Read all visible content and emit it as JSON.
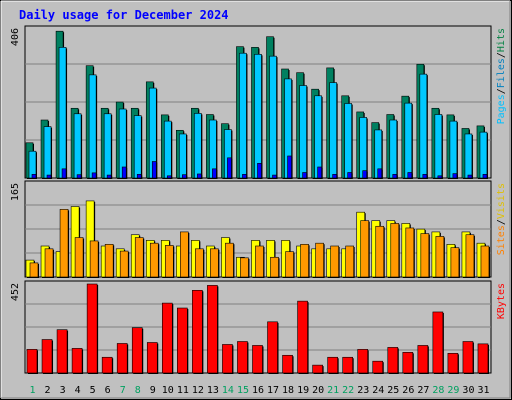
{
  "chart_data": {
    "type": "bar",
    "title": "Daily usage for December 2024",
    "categories": [
      "1",
      "2",
      "3",
      "4",
      "5",
      "6",
      "7",
      "8",
      "9",
      "10",
      "11",
      "12",
      "13",
      "14",
      "15",
      "16",
      "17",
      "18",
      "19",
      "20",
      "21",
      "22",
      "23",
      "24",
      "25",
      "26",
      "27",
      "28",
      "29",
      "30",
      "31"
    ],
    "weekend_days": [
      "1",
      "7",
      "8",
      "14",
      "15",
      "21",
      "22",
      "28",
      "29"
    ],
    "panels": [
      {
        "name": "hits-files-pages",
        "ytick": "406",
        "ymax": 406,
        "legend": [
          {
            "text": "Pages",
            "color": "#00c0ff"
          },
          {
            "text": "/",
            "color": "#000000"
          },
          {
            "text": "Files",
            "color": "#0080c0"
          },
          {
            "text": "/",
            "color": "#000000"
          },
          {
            "text": "Hits",
            "color": "#008040"
          }
        ],
        "series": [
          {
            "name": "Hits",
            "color": "#008060",
            "values": [
              96,
              158,
              400,
              190,
              306,
              190,
              207,
              190,
              262,
              172,
              130,
              190,
              173,
              148,
              358,
              356,
              385,
              297,
              287,
              242,
              300,
              224,
              180,
              151,
              173,
              223,
              310,
              190,
              172,
              135,
              142
            ]
          },
          {
            "name": "Files",
            "color": "#00c8ff",
            "values": [
              73,
              140,
              356,
              175,
              281,
              175,
              188,
              170,
              245,
              155,
              120,
              176,
              158,
              132,
              340,
              337,
              332,
              270,
              252,
              224,
              260,
              203,
              165,
              131,
              158,
              204,
              283,
              173,
              155,
              120,
              125
            ]
          },
          {
            "name": "Pages",
            "color": "#0000ff",
            "values": [
              10,
              8,
              25,
              9,
              14,
              8,
              30,
              10,
              45,
              6,
              9,
              11,
              25,
              55,
              10,
              40,
              8,
              60,
              15,
              30,
              10,
              15,
              20,
              25,
              10,
              15,
              10,
              6,
              12,
              8,
              10
            ]
          }
        ]
      },
      {
        "name": "visits-sites",
        "ytick": "165",
        "ymax": 165,
        "legend": [
          {
            "text": "Sites",
            "color": "#ff8000"
          },
          {
            "text": "/",
            "color": "#000000"
          },
          {
            "text": "Visits",
            "color": "#e0c000"
          }
        ],
        "series": [
          {
            "name": "Visits",
            "color": "#ffff00",
            "values": [
              30,
              55,
              45,
              125,
              135,
              55,
              50,
              75,
              65,
              65,
              55,
              65,
              55,
              70,
              35,
              65,
              65,
              65,
              55,
              50,
              50,
              50,
              115,
              100,
              100,
              95,
              85,
              80,
              58,
              80,
              60
            ]
          },
          {
            "name": "Sites",
            "color": "#ff9900",
            "values": [
              25,
              50,
              120,
              70,
              64,
              58,
              46,
              70,
              60,
              56,
              80,
              50,
              50,
              60,
              34,
              55,
              35,
              45,
              58,
              60,
              55,
              55,
              100,
              90,
              95,
              87,
              77,
              72,
              52,
              75,
              55
            ]
          }
        ]
      },
      {
        "name": "kbytes",
        "ytick": "452",
        "ymax": 452,
        "legend": [
          {
            "text": "KBytes",
            "color": "#ff0000"
          }
        ],
        "series": [
          {
            "name": "KBytes",
            "color": "#ff0000",
            "values": [
              120,
              170,
              220,
              125,
              452,
              80,
              150,
              230,
              155,
              355,
              330,
              420,
              445,
              145,
              160,
              140,
              260,
              90,
              365,
              40,
              80,
              80,
              120,
              60,
              130,
              105,
              140,
              310,
              100,
              160,
              148
            ]
          }
        ]
      }
    ]
  }
}
